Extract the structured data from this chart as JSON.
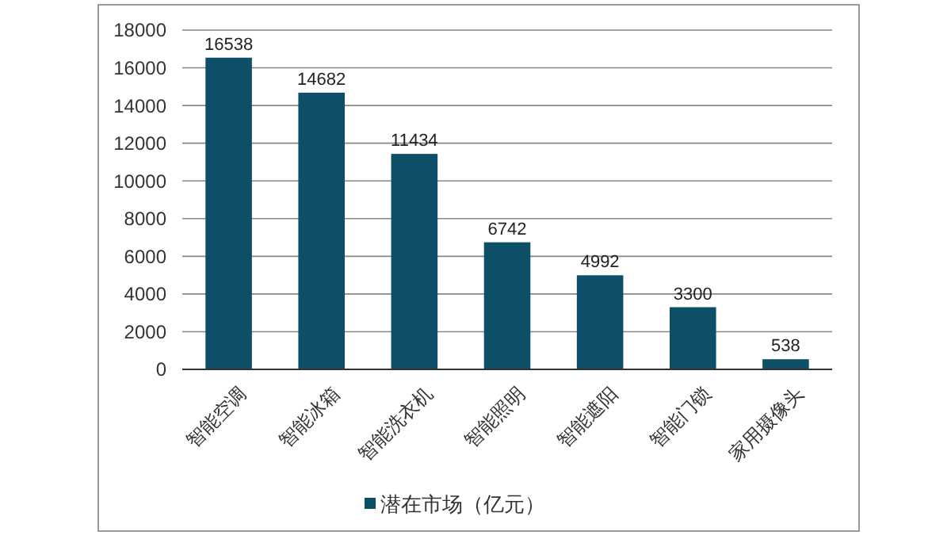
{
  "chart_data": {
    "type": "bar",
    "categories": [
      "智能空调",
      "智能冰箱",
      "智能洗衣机",
      "智能照明",
      "智能遮阳",
      "智能门锁",
      "家用摄像头"
    ],
    "series": [
      {
        "name": "潜在市场（亿元）",
        "color": "#0d4f66",
        "values": [
          16538,
          14682,
          11434,
          6742,
          4992,
          3300,
          538
        ]
      }
    ],
    "ylim": [
      0,
      18000
    ],
    "yticks": [
      0,
      2000,
      4000,
      6000,
      8000,
      10000,
      12000,
      14000,
      16000,
      18000
    ],
    "grid": "y",
    "legend": "bottom",
    "data_labels": true
  }
}
